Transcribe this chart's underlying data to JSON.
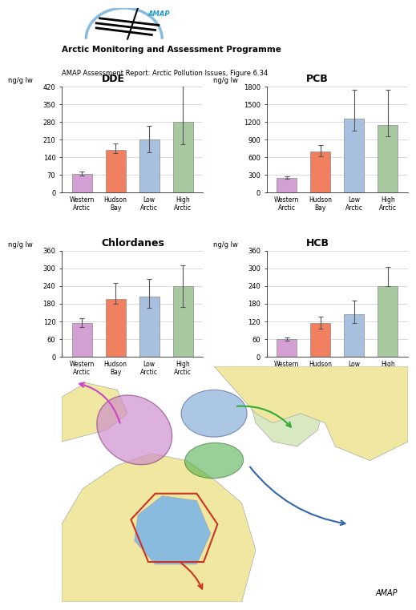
{
  "charts": [
    {
      "title": "DDE",
      "ylabel": "ng/g lw",
      "ylim": [
        0,
        420
      ],
      "yticks": [
        0,
        70,
        140,
        210,
        280,
        350,
        420
      ],
      "values": [
        75,
        170,
        210,
        280
      ],
      "errors_low": [
        8,
        15,
        50,
        90
      ],
      "errors_high": [
        8,
        25,
        55,
        145
      ]
    },
    {
      "title": "PCB",
      "ylabel": "ng/g lw",
      "ylim": [
        0,
        1800
      ],
      "yticks": [
        0,
        300,
        600,
        900,
        1200,
        1500,
        1800
      ],
      "values": [
        250,
        700,
        1250,
        1150
      ],
      "errors_low": [
        20,
        80,
        200,
        200
      ],
      "errors_high": [
        20,
        100,
        500,
        600
      ]
    },
    {
      "title": "Chlordanes",
      "ylabel": "ng/g lw",
      "ylim": [
        0,
        360
      ],
      "yticks": [
        0,
        60,
        120,
        180,
        240,
        300,
        360
      ],
      "values": [
        115,
        195,
        205,
        240
      ],
      "errors_low": [
        15,
        15,
        40,
        70
      ],
      "errors_high": [
        15,
        55,
        60,
        70
      ]
    },
    {
      "title": "HCB",
      "ylabel": "ng/g lw",
      "ylim": [
        0,
        360
      ],
      "yticks": [
        0,
        60,
        120,
        180,
        240,
        300,
        360
      ],
      "values": [
        60,
        115,
        145,
        240
      ],
      "errors_low": [
        5,
        20,
        30,
        0
      ],
      "errors_high": [
        5,
        20,
        45,
        65
      ]
    }
  ],
  "categories": [
    "Western\nArctic",
    "Hudson\nBay",
    "Low\nArctic",
    "High\nArctic"
  ],
  "bar_colors": [
    "#d4a0d4",
    "#f08060",
    "#a8c0e0",
    "#a8c8a0"
  ],
  "bar_edge_color": "#888888",
  "error_color": "#555555",
  "background_color": "#ffffff",
  "header_title": "Arctic Monitoring and Assessment Programme",
  "header_subtitle": "AMAP Assessment Report: Arctic Pollution Issues, Figure 6.34",
  "footer_text": "AMAP",
  "map_bg_color": "#c8e8f8",
  "land_color": "#f0e8a0",
  "grid_color": "#cccccc"
}
